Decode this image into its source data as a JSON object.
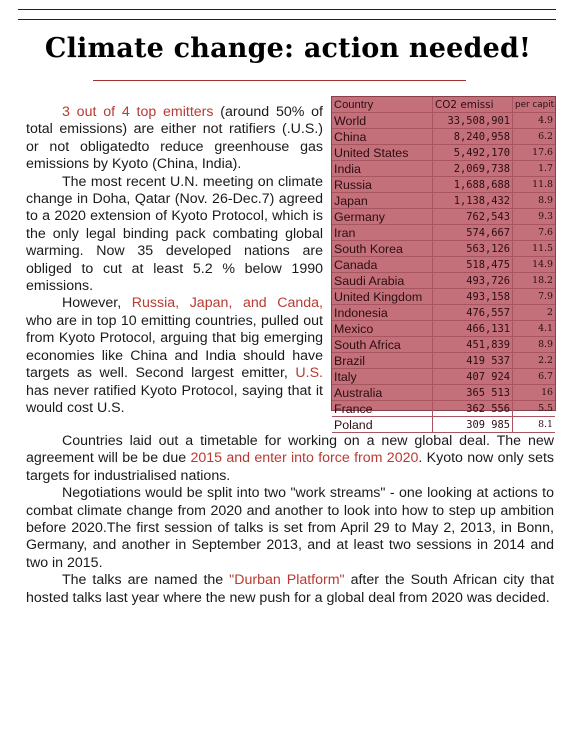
{
  "title": "Climate change: action needed!",
  "col_left": {
    "p1": {
      "highlight": "3 out of 4 top emitters",
      "rest": " (around 50% of total emissions) are either not ratifiers (.U.S.) or not obligatedto reduce greenhouse gas emissions by Kyoto (China, India)."
    },
    "p2": "The most recent U.N. meeting on climate change in Doha, Qatar (Nov. 26-Dec.7) agreed to a 2020 extension of Kyoto Protocol, which is the only legal binding pack combating global warming. Now 35 developed nations are obliged to cut at least 5.2 % below 1990 emissions.",
    "p3": {
      "a": "However, ",
      "highlight1": "Russia, Japan, and Canda,",
      "b": " who are in top 10 emitting countries, pulled out from Kyoto Protocol, arguing that big emerging economies like China and India should have targets as well. Second largest emitter, ",
      "highlight2": "U.S.",
      "c": " has never ratified Kyoto Protocol, saying that it would cost U.S."
    }
  },
  "col_full": {
    "p4": {
      "a": "Countries laid out a timetable for working on a new global deal. The new agreement will be be due ",
      "highlight": "2015 and enter into force from 2020",
      "b": ". Kyoto now only sets targets for industrialised nations."
    },
    "p5": "Negotiations would be split into two \"work streams\" - one looking at actions to combat climate change from 2020 and another to look into how to step up ambition before 2020.The first session of talks is set from April 29 to May 2, 2013, in Bonn, Germany, and another in September 2013, and at least two sessions in 2014 and two in 2015.",
    "p6": {
      "a": "The talks are named the ",
      "highlight": "\"Durban Platform\"",
      "b": " after the South African city that hosted talks last year where the new push for a global deal from 2020 was decided."
    }
  },
  "table": {
    "headers": [
      "Country",
      "CO2 emissi",
      "per capita"
    ],
    "rows": [
      [
        "World",
        "33,508,901",
        "4.9"
      ],
      [
        "China",
        "8,240,958",
        "6.2"
      ],
      [
        "United States",
        "5,492,170",
        "17.6"
      ],
      [
        "India",
        "2,069,738",
        "1.7"
      ],
      [
        "Russia",
        "1,688,688",
        "11.8"
      ],
      [
        "Japan",
        "1,138,432",
        "8.9"
      ],
      [
        "Germany",
        "762,543",
        "9.3"
      ],
      [
        "Iran",
        "574,667",
        "7.6"
      ],
      [
        "South Korea",
        "563,126",
        "11.5"
      ],
      [
        "Canada",
        "518,475",
        "14.9"
      ],
      [
        "Saudi Arabia",
        "493,726",
        "18.2"
      ],
      [
        "United Kingdom",
        "493,158",
        "7.9"
      ],
      [
        "Indonesia",
        "476,557",
        "2"
      ],
      [
        "Mexico",
        "466,131",
        "4.1"
      ],
      [
        "South Africa",
        "451,839",
        "8.9"
      ],
      [
        "Brazil",
        "419 537",
        "2.2"
      ],
      [
        "Italy",
        "407 924",
        "6.7"
      ],
      [
        "Australia",
        "365 513",
        "16"
      ],
      [
        "France",
        "362 556",
        "5.5"
      ],
      [
        "Poland",
        "309 985",
        "8.1"
      ]
    ]
  },
  "colors": {
    "accent": "#b83a32",
    "table_bg": "#c3707a"
  }
}
